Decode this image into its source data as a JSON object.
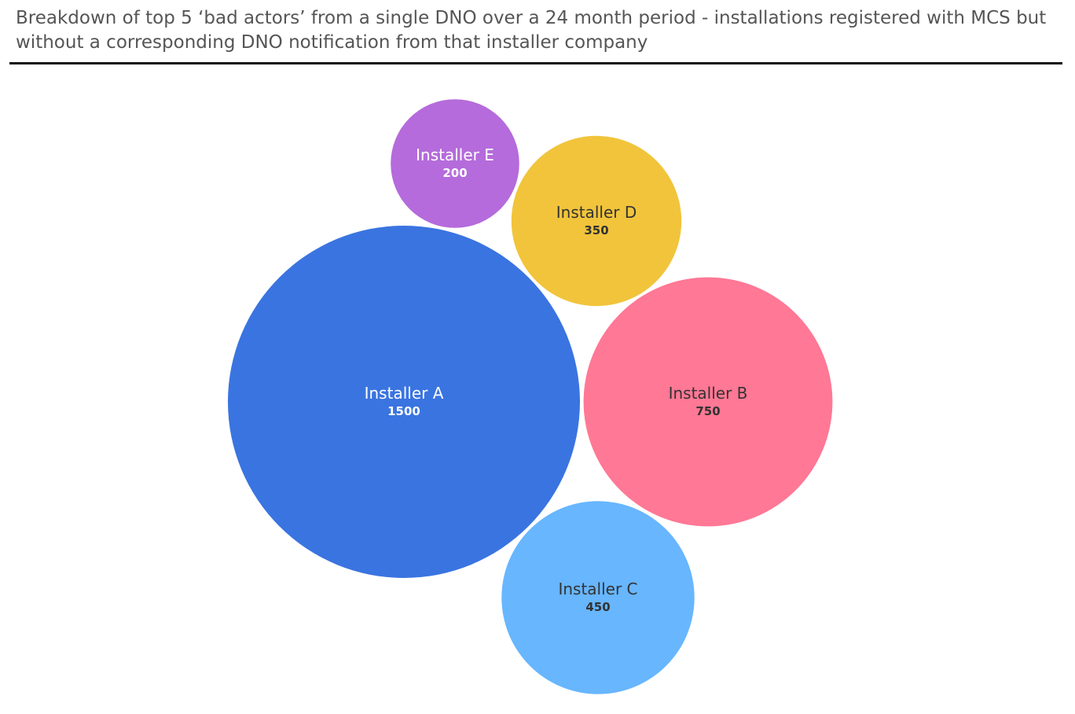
{
  "chart_data": {
    "type": "bubble",
    "title": "Breakdown of top 5 ‘bad actors’ from a single DNO over a 24 month period - installations registered with MCS but without a corresponding DNO notification from that installer company",
    "items": [
      {
        "label": "Installer A",
        "value": "1500",
        "color": "#3a74e0",
        "text_color": "#ffffff"
      },
      {
        "label": "Installer B",
        "value": "750",
        "color": "#ff7895",
        "text_color": "#333333"
      },
      {
        "label": "Installer C",
        "value": "450",
        "color": "#67b6fe",
        "text_color": "#333333"
      },
      {
        "label": "Installer D",
        "value": "350",
        "color": "#f1c43b",
        "text_color": "#333333"
      },
      {
        "label": "Installer E",
        "value": "200",
        "color": "#b56bdb",
        "text_color": "#ffffff"
      }
    ]
  }
}
